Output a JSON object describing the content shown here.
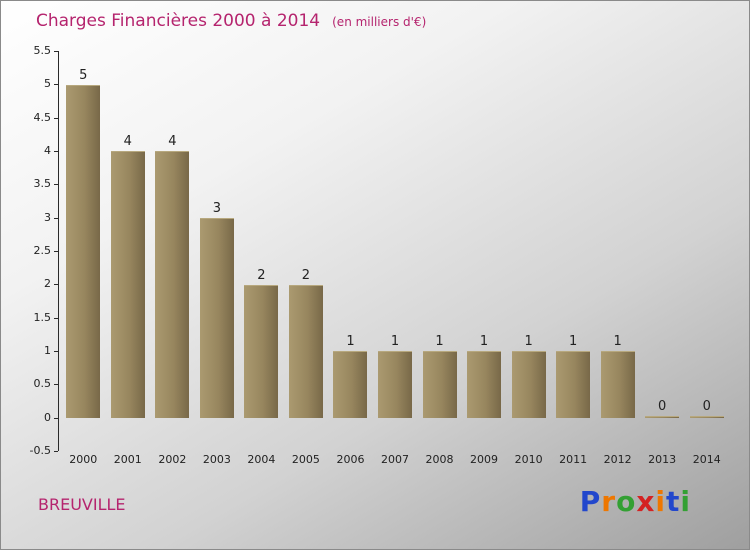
{
  "title": {
    "main": "Charges Financières 2000 à 2014",
    "sub": "(en milliers d'€)"
  },
  "footer": {
    "company": "BREUVILLE"
  },
  "logo": {
    "text": "Proxiti",
    "letters": [
      {
        "char": "P",
        "color": "#2247cc"
      },
      {
        "char": "r",
        "color": "#ee7700"
      },
      {
        "char": "o",
        "color": "#33a033"
      },
      {
        "char": "x",
        "color": "#d42222"
      },
      {
        "char": "i",
        "color": "#ee7700"
      },
      {
        "char": "t",
        "color": "#2247cc"
      },
      {
        "char": "i",
        "color": "#33a033"
      }
    ]
  },
  "colors": {
    "title_text": "#b5246e",
    "bar_light": "#ab9a70",
    "bar_dark": "#786848",
    "axis": "#2a2a2a",
    "background_top": "#ffffff",
    "background_bottom": "#9f9f9f"
  },
  "chart_data": {
    "type": "bar",
    "title": "Charges Financières 2000 à 2014",
    "subtitle": "(en milliers d'€)",
    "categories": [
      "2000",
      "2001",
      "2002",
      "2003",
      "2004",
      "2005",
      "2006",
      "2007",
      "2008",
      "2009",
      "2010",
      "2011",
      "2012",
      "2013",
      "2014"
    ],
    "values": [
      5,
      4,
      4,
      3,
      2,
      2,
      1,
      1,
      1,
      1,
      1,
      1,
      1,
      0,
      0
    ],
    "xlabel": "",
    "ylabel": "",
    "ylim": [
      -0.5,
      5.5
    ],
    "yticks": [
      5.5,
      5,
      4.5,
      4,
      3.5,
      3,
      2.5,
      2,
      1.5,
      1,
      0.5,
      0,
      -0.5
    ],
    "grid": false,
    "legend": false
  }
}
